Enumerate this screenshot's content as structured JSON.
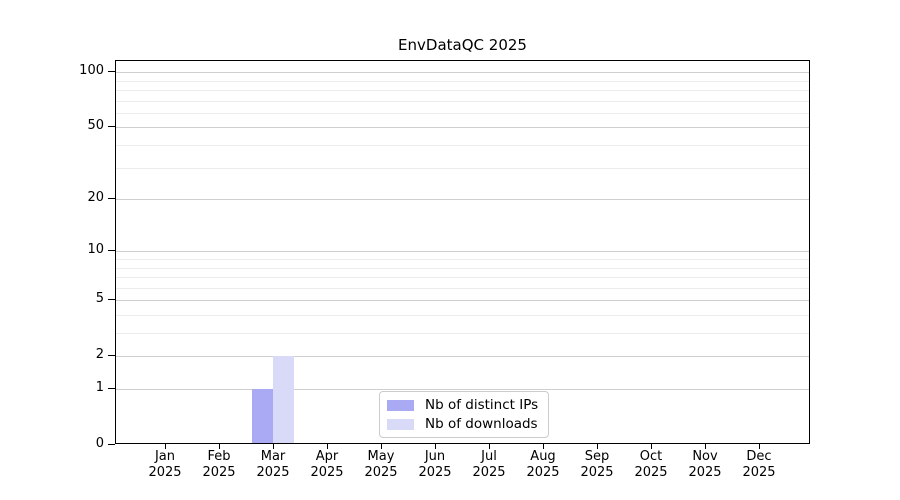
{
  "chart_data": {
    "type": "bar",
    "title": "EnvDataQC 2025",
    "categories": [
      "Jan",
      "Feb",
      "Mar",
      "Apr",
      "May",
      "Jun",
      "Jul",
      "Aug",
      "Sep",
      "Oct",
      "Nov",
      "Dec"
    ],
    "category_year": "2025",
    "series": [
      {
        "name": "Nb of distinct IPs",
        "color": "#a9a9f4",
        "values": [
          0,
          0,
          1,
          0,
          0,
          0,
          0,
          0,
          0,
          0,
          0,
          0
        ]
      },
      {
        "name": "Nb of downloads",
        "color": "#d9d9f8",
        "values": [
          0,
          0,
          2,
          0,
          0,
          0,
          0,
          0,
          0,
          0,
          0,
          0
        ]
      }
    ],
    "xlabel": "",
    "ylabel": "",
    "yscale": "log1p",
    "ylim": [
      0,
      115
    ],
    "yticks": [
      0,
      1,
      2,
      5,
      10,
      20,
      50,
      100
    ],
    "minor_gridlines": [
      3,
      4,
      6,
      7,
      8,
      9,
      30,
      40,
      60,
      70,
      80,
      90
    ],
    "grid": "horizontal major+minor",
    "legend_position": "inside lower center"
  }
}
